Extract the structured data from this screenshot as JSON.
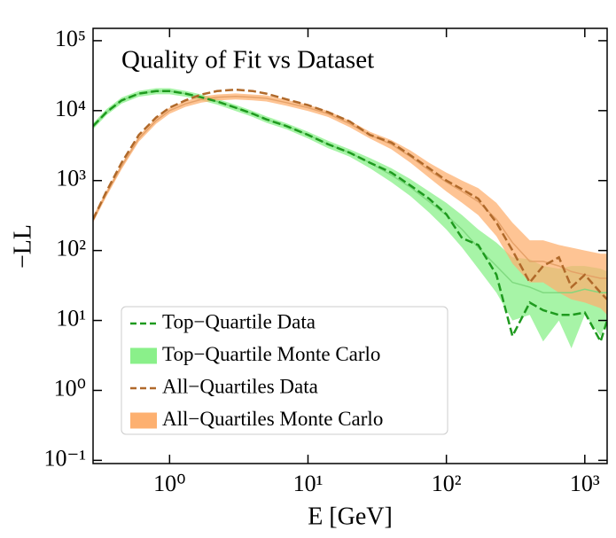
{
  "chart_data": {
    "type": "line",
    "title": "Quality of Fit vs Dataset",
    "xlabel": "E [GeV]",
    "ylabel": "−LL",
    "xscale": "log",
    "yscale": "log",
    "legend": "lower left",
    "xlim": [
      0.28,
      1450
    ],
    "ylim": [
      0.09,
      150000
    ],
    "xticks": [
      {
        "value": 1,
        "label": "10⁰"
      },
      {
        "value": 10,
        "label": "10¹"
      },
      {
        "value": 100,
        "label": "10²"
      },
      {
        "value": 1000,
        "label": "10³"
      }
    ],
    "yticks": [
      {
        "value": 0.1,
        "label": "10⁻¹"
      },
      {
        "value": 1,
        "label": "10⁰"
      },
      {
        "value": 10,
        "label": "10¹"
      },
      {
        "value": 100,
        "label": "10²"
      },
      {
        "value": 1000,
        "label": "10³"
      },
      {
        "value": 10000,
        "label": "10⁴"
      },
      {
        "value": 100000,
        "label": "10⁵"
      }
    ],
    "x": [
      0.28,
      0.35,
      0.45,
      0.6,
      0.8,
      1,
      1.3,
      1.7,
      2.2,
      3,
      4,
      5,
      7,
      10,
      14,
      20,
      28,
      40,
      55,
      75,
      100,
      130,
      170,
      230,
      300,
      400,
      500,
      650,
      800,
      1000,
      1300,
      1450
    ],
    "series": [
      {
        "name": "Top−Quartile Data",
        "color": "#1e9a1e",
        "style": "dashed",
        "values": [
          6000,
          9500,
          14000,
          17500,
          19000,
          19000,
          17500,
          15500,
          13500,
          11000,
          9000,
          7500,
          6000,
          4500,
          3300,
          2500,
          1800,
          1300,
          850,
          550,
          330,
          150,
          120,
          45,
          6,
          18,
          14,
          12,
          12,
          13,
          5,
          10
        ]
      },
      {
        "name": "Top−Quartile Monte Carlo",
        "color": "#8af08a",
        "style": "band",
        "values": [
          6000,
          9500,
          14000,
          17500,
          19000,
          19000,
          17500,
          15500,
          13500,
          11000,
          9000,
          7500,
          6000,
          4500,
          3300,
          2500,
          1800,
          1200,
          800,
          500,
          320,
          200,
          110,
          60,
          35,
          30,
          25,
          25,
          25,
          28,
          25,
          25
        ],
        "lower": [
          5400,
          8600,
          12600,
          15800,
          17100,
          17100,
          15800,
          14000,
          12200,
          9900,
          8100,
          6700,
          5400,
          4000,
          2900,
          2200,
          1500,
          950,
          600,
          350,
          200,
          110,
          55,
          25,
          10,
          12,
          5,
          10,
          4,
          12,
          6,
          10
        ],
        "upper": [
          6600,
          10500,
          15400,
          19200,
          20900,
          20900,
          19200,
          17000,
          14800,
          12100,
          9900,
          8300,
          6600,
          5000,
          3700,
          2800,
          2100,
          1500,
          1050,
          700,
          480,
          320,
          200,
          130,
          80,
          75,
          60,
          55,
          60,
          60,
          55,
          50
        ]
      },
      {
        "name": "All−Quartiles Data",
        "color": "#b0692a",
        "style": "dashed",
        "values": [
          280,
          700,
          1800,
          4500,
          8000,
          11000,
          14000,
          17000,
          19000,
          20000,
          19000,
          17500,
          14500,
          12000,
          9500,
          7000,
          4500,
          3500,
          2300,
          1500,
          1000,
          750,
          550,
          250,
          100,
          35,
          60,
          80,
          30,
          45,
          25,
          20
        ]
      },
      {
        "name": "All−Quartiles Monte Carlo",
        "color": "#fdb070",
        "style": "band",
        "values": [
          280,
          650,
          1600,
          4000,
          7200,
          10000,
          12500,
          14500,
          15500,
          16000,
          15500,
          15000,
          13000,
          11000,
          9000,
          6500,
          4500,
          3300,
          2200,
          1400,
          950,
          700,
          500,
          280,
          130,
          70,
          70,
          60,
          50,
          45,
          40,
          40
        ],
        "lower": [
          250,
          590,
          1450,
          3600,
          6500,
          9000,
          11300,
          13000,
          14000,
          14400,
          14000,
          13500,
          11700,
          9900,
          8100,
          5800,
          4000,
          2800,
          1800,
          1100,
          700,
          480,
          320,
          160,
          65,
          35,
          35,
          25,
          20,
          18,
          15,
          12
        ],
        "upper": [
          310,
          720,
          1750,
          4400,
          7900,
          11000,
          13700,
          16000,
          17000,
          17600,
          17000,
          16500,
          14300,
          12100,
          9900,
          7200,
          5000,
          3800,
          2700,
          1800,
          1300,
          1000,
          780,
          480,
          250,
          140,
          140,
          120,
          110,
          100,
          90,
          90
        ]
      }
    ]
  }
}
